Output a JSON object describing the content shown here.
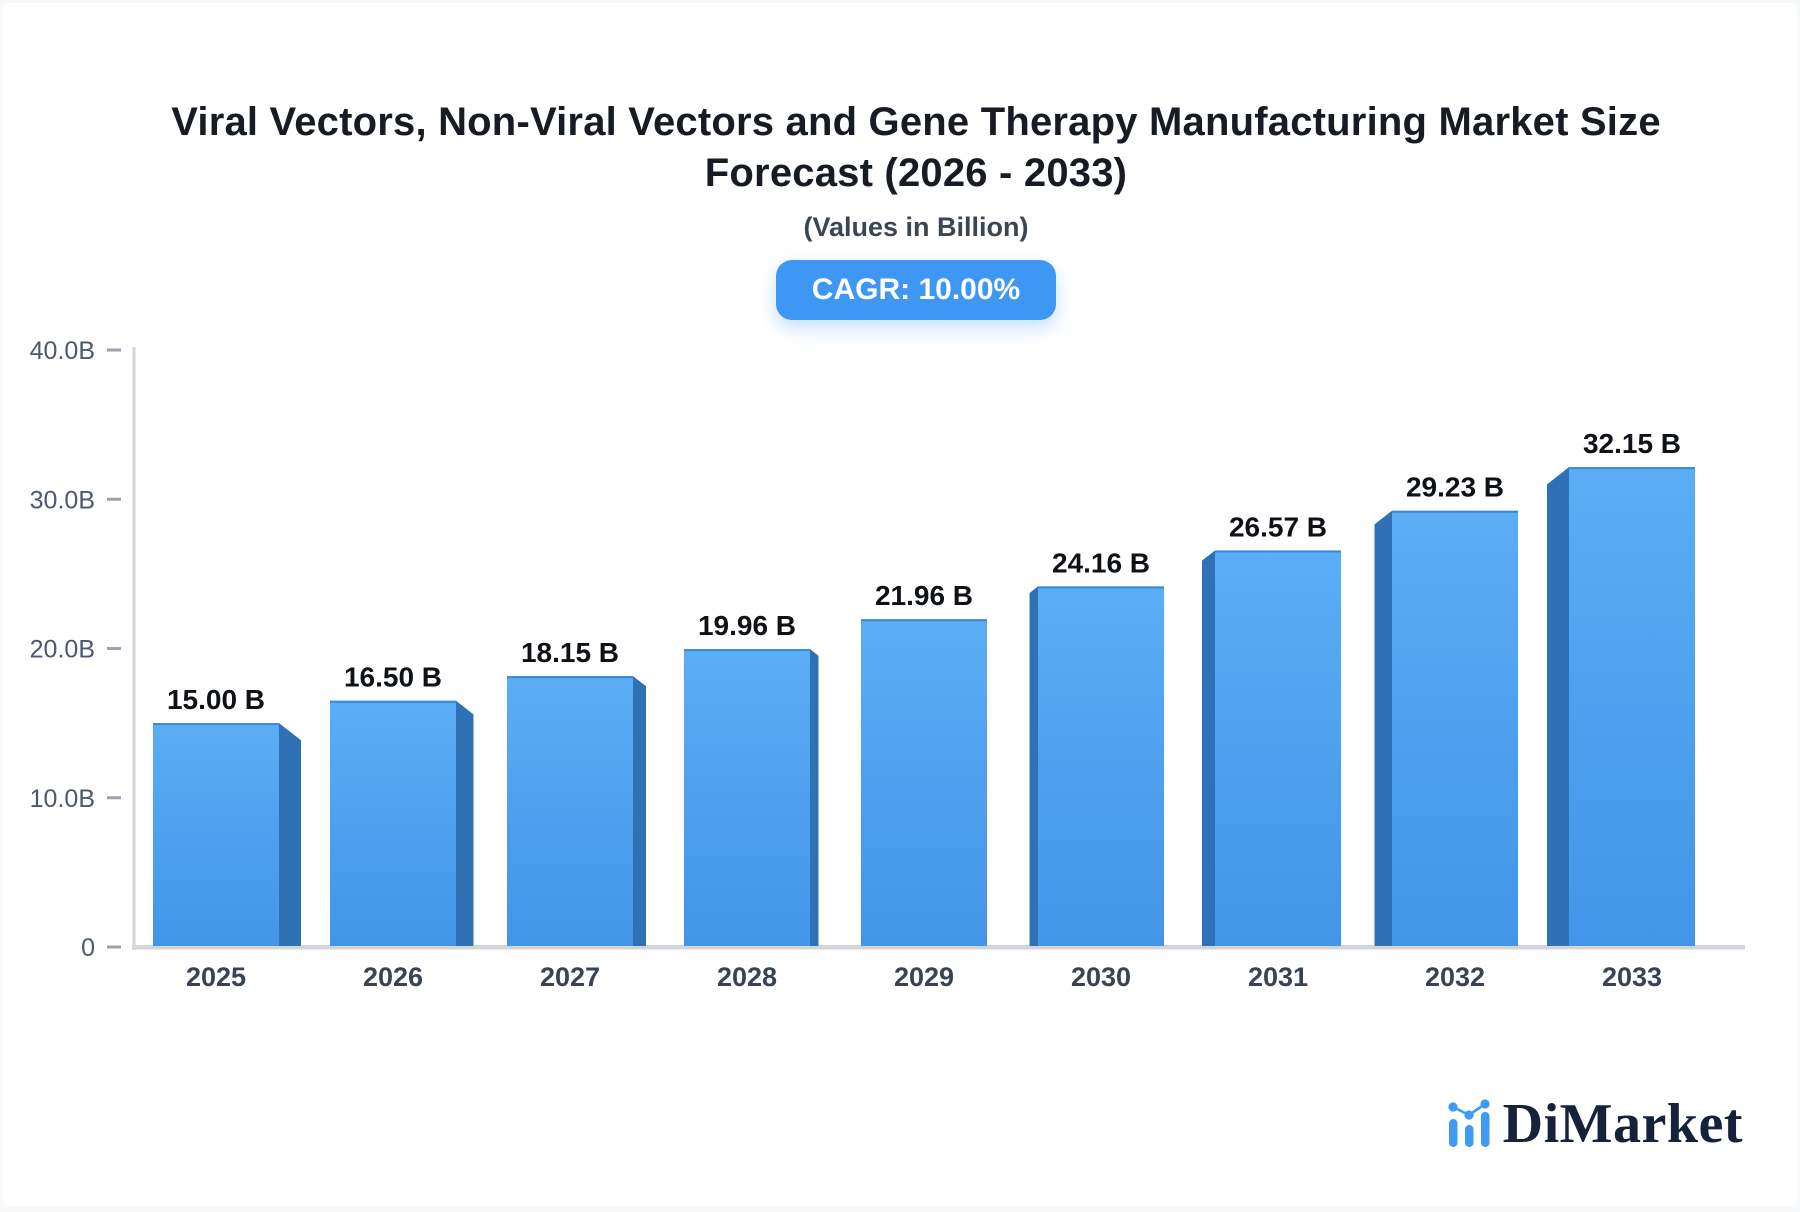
{
  "header": {
    "title_line1": "Viral Vectors, Non-Viral Vectors and Gene Therapy Manufacturing Market Size",
    "title_line2": "Forecast (2026 - 2033)",
    "subtitle": "(Values in Billion)",
    "cagr_badge": "CAGR: 10.00%"
  },
  "branding": {
    "logo_text": "DiMarket",
    "logo_icon": "bar-chart-with-trend-dots-icon"
  },
  "chart_data": {
    "type": "bar",
    "title": "Viral Vectors, Non-Viral Vectors and Gene Therapy Manufacturing Market Size Forecast (2026 - 2033)",
    "subtitle": "(Values in Billion)",
    "cagr": "10.00%",
    "xlabel": "",
    "ylabel": "",
    "unit": "Billion",
    "grid": false,
    "legend": false,
    "style": "3d-extruded-bars, perspective vanishing toward center bar",
    "categories": [
      "2025",
      "2026",
      "2027",
      "2028",
      "2029",
      "2030",
      "2031",
      "2032",
      "2033"
    ],
    "values": [
      15.0,
      16.5,
      18.15,
      19.96,
      21.96,
      24.16,
      26.57,
      29.23,
      32.15
    ],
    "value_labels": [
      "15.00 B",
      "16.50 B",
      "18.15 B",
      "19.96 B",
      "21.96 B",
      "24.16 B",
      "26.57 B",
      "29.23 B",
      "32.15 B"
    ],
    "ylim": [
      0,
      40
    ],
    "y_ticks": [
      {
        "value": 40,
        "label": "40.0B"
      },
      {
        "value": 30,
        "label": "30.0B"
      },
      {
        "value": 20,
        "label": "20.0B"
      },
      {
        "value": 10,
        "label": "10.0B"
      },
      {
        "value": 0,
        "label": "0"
      }
    ],
    "colors": {
      "bar_front_top": "#5badf4",
      "bar_front_bottom": "#4295e8",
      "bar_top_edge": "#3282d4",
      "bar_side": "#2e72b5",
      "axis_line": "#d2d5da",
      "tick_dash": "#9aa2b0",
      "tick_label": "#4d5870",
      "category_label": "#3a4353",
      "value_label": "#0e1116",
      "badge_bg": "#3e97f3",
      "badge_text": "#ffffff",
      "logo_blue": "#3e9af5",
      "logo_navy": "#16213a",
      "card_bg": "#ffffff",
      "page_bg": "#f6f8fa"
    }
  }
}
